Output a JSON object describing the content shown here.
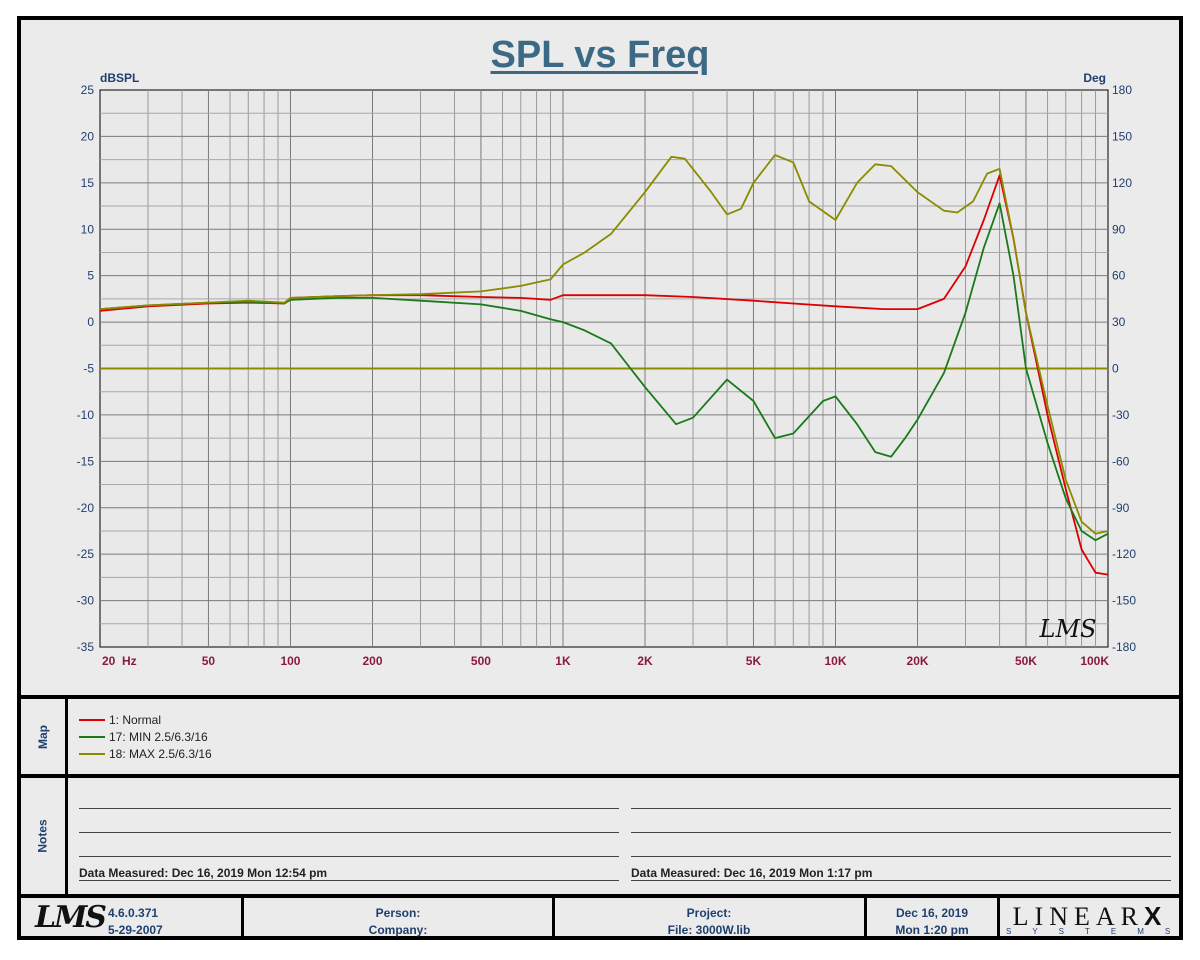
{
  "chart_data": {
    "type": "line",
    "title": "SPL vs Freq",
    "ylabel": "dBSPL",
    "y2label": "Deg",
    "x_unit_label": "Hz",
    "x_scale": "log",
    "xlim": [
      20,
      100000
    ],
    "ylim": [
      -35,
      25
    ],
    "y2lim": [
      -180,
      180
    ],
    "x_ticks": [
      20,
      50,
      100,
      200,
      500,
      1000,
      2000,
      5000,
      10000,
      20000,
      50000,
      100000
    ],
    "x_tick_labels": [
      "20",
      "50",
      "100",
      "200",
      "500",
      "1K",
      "2K",
      "5K",
      "10K",
      "20K",
      "50K",
      "100K"
    ],
    "y_ticks": [
      25,
      20,
      15,
      10,
      5,
      0,
      -5,
      -10,
      -15,
      -20,
      -25,
      -30,
      -35
    ],
    "y2_ticks": [
      180,
      150,
      120,
      90,
      60,
      30,
      0,
      -30,
      -60,
      -90,
      -120,
      -150,
      -180
    ],
    "grid": true,
    "reference_line": {
      "y": -5,
      "color": "#8b8b00"
    },
    "watermark": "LMS",
    "series": [
      {
        "name": "1: Normal",
        "color": "#dd0000",
        "x": [
          20,
          30,
          50,
          70,
          95,
          100,
          150,
          200,
          300,
          500,
          700,
          900,
          1000,
          1500,
          2000,
          3000,
          5000,
          7000,
          10000,
          15000,
          20000,
          25000,
          30000,
          35000,
          40000,
          45000,
          50000,
          60000,
          70000,
          80000,
          90000,
          100000
        ],
        "values": [
          1.2,
          1.7,
          2.0,
          2.1,
          2.0,
          2.6,
          2.8,
          2.9,
          2.9,
          2.7,
          2.6,
          2.4,
          2.9,
          2.9,
          2.9,
          2.7,
          2.3,
          2.0,
          1.7,
          1.4,
          1.4,
          2.5,
          6.0,
          11.0,
          15.8,
          9.0,
          1.0,
          -10.0,
          -18.0,
          -24.5,
          -27.0,
          -27.2
        ]
      },
      {
        "name": "17: MIN 2.5/6.3/16",
        "color": "#1a7a1a",
        "x": [
          20,
          30,
          50,
          70,
          95,
          100,
          150,
          200,
          300,
          500,
          700,
          900,
          1000,
          1200,
          1500,
          2000,
          2600,
          3000,
          4000,
          5000,
          6000,
          7000,
          9000,
          10000,
          12000,
          14000,
          16000,
          18000,
          20000,
          25000,
          30000,
          35000,
          40000,
          45000,
          50000,
          60000,
          70000,
          80000,
          90000,
          100000
        ],
        "values": [
          1.4,
          1.8,
          2.1,
          2.2,
          2.0,
          2.4,
          2.6,
          2.6,
          2.3,
          1.9,
          1.2,
          0.3,
          0.0,
          -0.9,
          -2.3,
          -7.0,
          -11.0,
          -10.3,
          -6.2,
          -8.5,
          -12.5,
          -12.0,
          -8.5,
          -8.0,
          -11.0,
          -14.0,
          -14.5,
          -12.5,
          -10.5,
          -5.5,
          1.0,
          8.0,
          12.8,
          5.0,
          -5.0,
          -13.0,
          -19.0,
          -22.5,
          -23.5,
          -22.8
        ]
      },
      {
        "name": "18: MAX 2.5/6.3/16",
        "color": "#8b8b00",
        "x": [
          20,
          30,
          50,
          70,
          95,
          100,
          150,
          200,
          300,
          500,
          700,
          900,
          1000,
          1200,
          1500,
          2000,
          2500,
          2800,
          3500,
          4000,
          4500,
          5000,
          6000,
          7000,
          8000,
          10000,
          12000,
          14000,
          16000,
          20000,
          25000,
          28000,
          32000,
          36000,
          40000,
          45000,
          50000,
          60000,
          70000,
          80000,
          90000,
          100000
        ],
        "values": [
          1.4,
          1.8,
          2.1,
          2.3,
          2.1,
          2.6,
          2.8,
          2.9,
          3.0,
          3.3,
          3.9,
          4.6,
          6.2,
          7.5,
          9.5,
          14.0,
          17.8,
          17.6,
          14.0,
          11.6,
          12.2,
          15.0,
          18.0,
          17.2,
          13.0,
          11.0,
          15.0,
          17.0,
          16.8,
          14.0,
          12.0,
          11.8,
          13.0,
          16.0,
          16.5,
          9.0,
          1.0,
          -9.0,
          -17.0,
          -21.5,
          -22.8,
          -22.5
        ]
      }
    ]
  },
  "map": {
    "label": "Map"
  },
  "notes": {
    "label": "Notes",
    "left_measured": "Data Measured: Dec 16, 2019  Mon 12:54 pm",
    "right_measured": "Data Measured: Dec 16, 2019  Mon  1:17 pm"
  },
  "footer": {
    "logo": "LMS",
    "version": "4.6.0.371",
    "build_date": "5-29-2007",
    "person_label": "Person:",
    "company_label": "Company:",
    "project_label": "Project:",
    "file_label": "File: 3000W.lib",
    "date": "Dec 16, 2019",
    "time": "Mon  1:20 pm",
    "brand": "LINEAR",
    "brand_x": "X",
    "brand_sub": "SYSTEMS"
  }
}
